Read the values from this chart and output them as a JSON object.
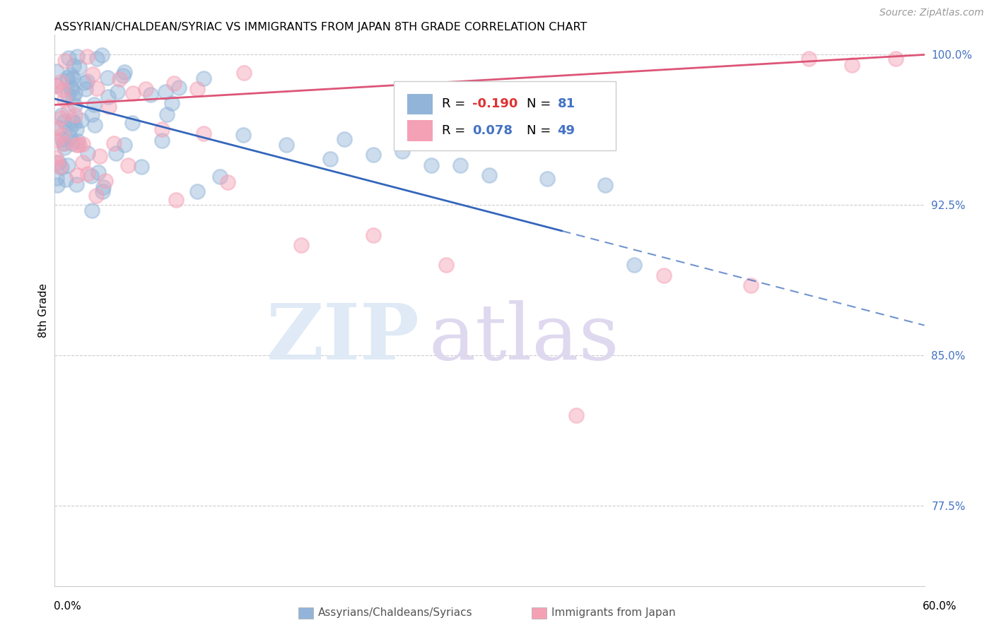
{
  "title": "ASSYRIAN/CHALDEAN/SYRIAC VS IMMIGRANTS FROM JAPAN 8TH GRADE CORRELATION CHART",
  "source": "Source: ZipAtlas.com",
  "ylabel": "8th Grade",
  "xmin": 0.0,
  "xmax": 0.6,
  "ymin": 0.735,
  "ymax": 1.01,
  "blue_R": -0.19,
  "blue_N": 81,
  "pink_R": 0.078,
  "pink_N": 49,
  "blue_color": "#92b4d8",
  "pink_color": "#f4a0b5",
  "blue_line_color": "#3366bb",
  "pink_line_color": "#dd5577",
  "blue_label": "Assyrians/Chaldeans/Syriacs",
  "pink_label": "Immigrants from Japan",
  "y_tick_vals": [
    0.775,
    0.85,
    0.925,
    1.0
  ],
  "y_tick_labels": [
    "77.5%",
    "85.0%",
    "92.5%",
    "100.0%"
  ],
  "grid_color": "#cccccc",
  "title_fontsize": 12,
  "source_color": "#999999"
}
